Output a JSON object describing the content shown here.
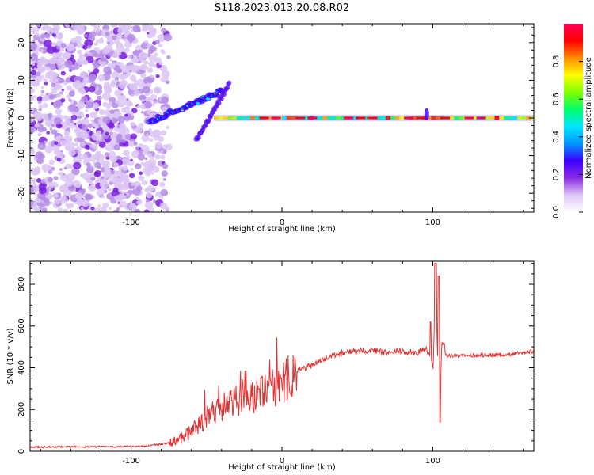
{
  "title": "S118.2023.013.20.08.R02",
  "chart_data": [
    {
      "type": "heatmap",
      "xlabel": "Height of straight line (km)",
      "ylabel": "Frequency (Hz)",
      "xlim": [
        -167,
        167
      ],
      "ylim": [
        -25,
        25
      ],
      "x_ticks": [
        -100,
        0,
        100
      ],
      "y_ticks": [
        -20,
        -10,
        0,
        10,
        20
      ],
      "x_tick_labels": [
        "-100",
        "0",
        "100"
      ],
      "y_tick_labels": [
        "-20",
        "-10",
        "0",
        "10",
        "20"
      ],
      "colorbar": {
        "label": "Normalized spectral amplitude",
        "range": [
          0,
          1
        ],
        "ticks": [
          0.0,
          0.2,
          0.4,
          0.6,
          0.8
        ],
        "tick_labels": [
          "0.0",
          "0.2",
          "0.4",
          "0.6",
          "0.8"
        ],
        "colormap": [
          "#ffffff",
          "#dcc6f5",
          "#8a2be2",
          "#3b00ff",
          "#0096ff",
          "#00e5ff",
          "#00ff6a",
          "#7fff00",
          "#ffff00",
          "#ff8c00",
          "#ff0000",
          "#ff0055"
        ]
      },
      "features": [
        {
          "name": "noise",
          "x": [
            -167,
            -75
          ],
          "y": [
            -25,
            25
          ],
          "amplitude": 0.15
        },
        {
          "name": "rising",
          "x": [
            -88,
            -40
          ],
          "y": [
            -1,
            7
          ],
          "amplitude": 0.4
        },
        {
          "name": "branch",
          "x": [
            -57,
            -35
          ],
          "y": [
            -6,
            9
          ],
          "amplitude": 0.3
        },
        {
          "name": "signal",
          "x": [
            -45,
            167
          ],
          "y": [
            0,
            0
          ],
          "amplitude": 0.85
        }
      ]
    },
    {
      "type": "line",
      "xlabel": "Height of straight line (km)",
      "ylabel": "SNR (10 * v/v)",
      "xlim": [
        -167,
        167
      ],
      "ylim": [
        0,
        910
      ],
      "x_ticks": [
        -100,
        0,
        100
      ],
      "y_ticks": [
        0,
        200,
        400,
        600,
        800
      ],
      "x_tick_labels": [
        "-100",
        "0",
        "100"
      ],
      "y_tick_labels": [
        "0",
        "200",
        "400",
        "600",
        "800"
      ],
      "color": "#e83030",
      "series": [
        {
          "x": [
            -167,
            -140,
            -110,
            -90,
            -75,
            -65,
            -58,
            -50,
            -42,
            -35,
            -28,
            -20,
            -12,
            -5,
            0,
            5,
            10,
            15,
            20,
            25,
            30,
            40,
            50,
            60,
            70,
            80,
            90,
            95,
            100,
            102,
            104,
            106,
            108,
            110,
            120,
            130,
            140,
            150,
            160,
            167
          ],
          "values": [
            20,
            22,
            22,
            25,
            40,
            70,
            110,
            150,
            200,
            230,
            250,
            260,
            280,
            300,
            320,
            360,
            390,
            400,
            410,
            430,
            450,
            470,
            480,
            480,
            475,
            480,
            470,
            500,
            420,
            760,
            150,
            500,
            460,
            460,
            460,
            460,
            460,
            465,
            470,
            480
          ]
        }
      ]
    }
  ]
}
